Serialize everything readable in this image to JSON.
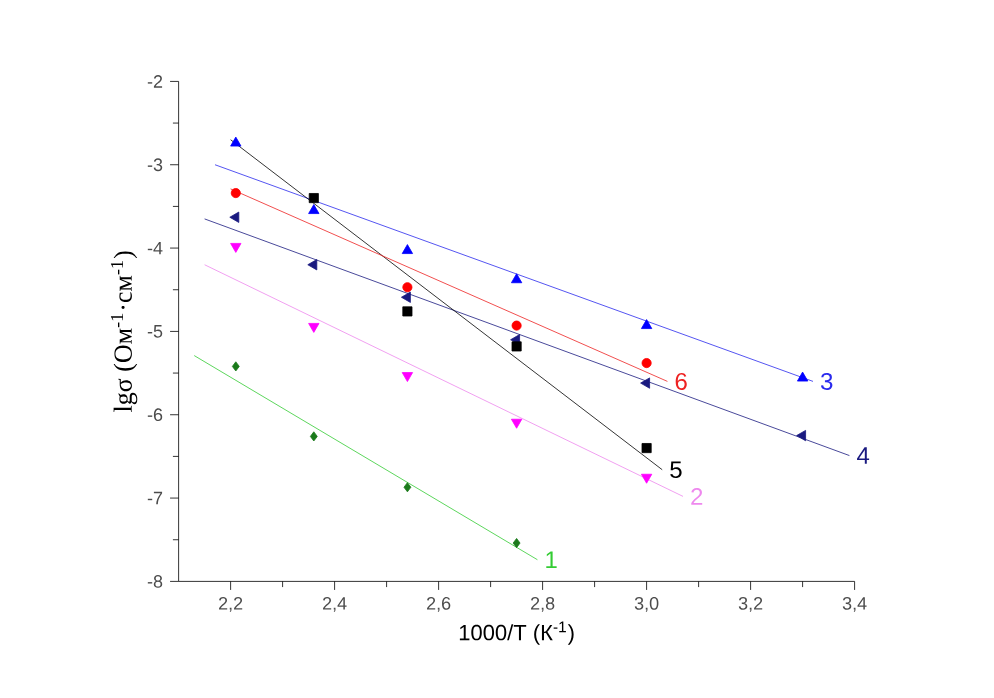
{
  "chart_data": {
    "type": "scatter",
    "xlabel": "1000/T (К$^{-1}$)",
    "ylabel": "lgσ (Ом$^{-1}$·см$^{-1}$)",
    "xlim": [
      2.1,
      3.4
    ],
    "ylim": [
      -8,
      -2
    ],
    "xticks": [
      {
        "value": 2.2,
        "label": "2,2"
      },
      {
        "value": 2.4,
        "label": "2,4"
      },
      {
        "value": 2.6,
        "label": "2,6"
      },
      {
        "value": 2.8,
        "label": "2,8"
      },
      {
        "value": 3.0,
        "label": "3,0"
      },
      {
        "value": 3.2,
        "label": "3,2"
      },
      {
        "value": 3.4,
        "label": "3,4"
      }
    ],
    "yticks": [
      -8,
      -7,
      -6,
      -5,
      -4,
      -3,
      -2
    ],
    "series": [
      {
        "type": "scatter",
        "marker": "diamond",
        "color": "#1a7a1a",
        "x": [
          2.21,
          2.36,
          2.54,
          2.75
        ],
        "values": [
          -5.42,
          -6.26,
          -6.87,
          -7.54
        ]
      },
      {
        "type": "line",
        "name": "1",
        "color": "#33cc33",
        "marker": "none",
        "x": [
          2.13,
          2.79
        ],
        "values": [
          -5.29,
          -7.74
        ]
      },
      {
        "type": "scatter",
        "marker": "triangle-down",
        "color": "#ff00ff",
        "x": [
          2.21,
          2.36,
          2.54,
          2.75,
          3.0
        ],
        "values": [
          -3.98,
          -4.94,
          -5.53,
          -6.09,
          -6.75
        ]
      },
      {
        "type": "line",
        "name": "2",
        "color": "#ee88ee",
        "marker": "none",
        "x": [
          2.15,
          3.07
        ],
        "values": [
          -4.2,
          -6.98
        ]
      },
      {
        "type": "scatter",
        "marker": "triangle",
        "color": "#0000ff",
        "x": [
          2.21,
          2.36,
          2.54,
          2.75,
          3.0,
          3.3
        ],
        "values": [
          -2.74,
          -3.55,
          -4.03,
          -4.38,
          -4.93,
          -5.56
        ]
      },
      {
        "type": "line",
        "name": "3",
        "color": "#2a2aee",
        "marker": "none",
        "x": [
          2.17,
          3.32
        ],
        "values": [
          -3.0,
          -5.6
        ]
      },
      {
        "type": "scatter",
        "marker": "triangle-left",
        "color": "#1a1a80",
        "x": [
          2.21,
          2.36,
          2.54,
          2.75,
          3.0,
          3.3
        ],
        "values": [
          -3.63,
          -4.2,
          -4.59,
          -5.1,
          -5.62,
          -6.25
        ]
      },
      {
        "type": "line",
        "name": "4",
        "color": "#1a1a80",
        "marker": "none",
        "x": [
          2.15,
          3.39
        ],
        "values": [
          -3.65,
          -6.49
        ]
      },
      {
        "type": "scatter",
        "marker": "square",
        "color": "#000000",
        "x": [
          2.36,
          2.54,
          2.75,
          3.0
        ],
        "values": [
          -3.4,
          -4.76,
          -5.18,
          -6.4
        ]
      },
      {
        "type": "line",
        "name": "5",
        "color": "#000000",
        "marker": "none",
        "x": [
          2.2,
          3.03
        ],
        "values": [
          -2.7,
          -6.66
        ]
      },
      {
        "type": "scatter",
        "marker": "circle",
        "color": "#ff0000",
        "x": [
          2.21,
          2.54,
          2.75,
          3.0
        ],
        "values": [
          -3.34,
          -4.47,
          -4.93,
          -5.38
        ]
      },
      {
        "type": "line",
        "name": "6",
        "color": "#ee2222",
        "marker": "none",
        "x": [
          2.2,
          3.04
        ],
        "values": [
          -3.29,
          -5.6
        ]
      }
    ]
  }
}
